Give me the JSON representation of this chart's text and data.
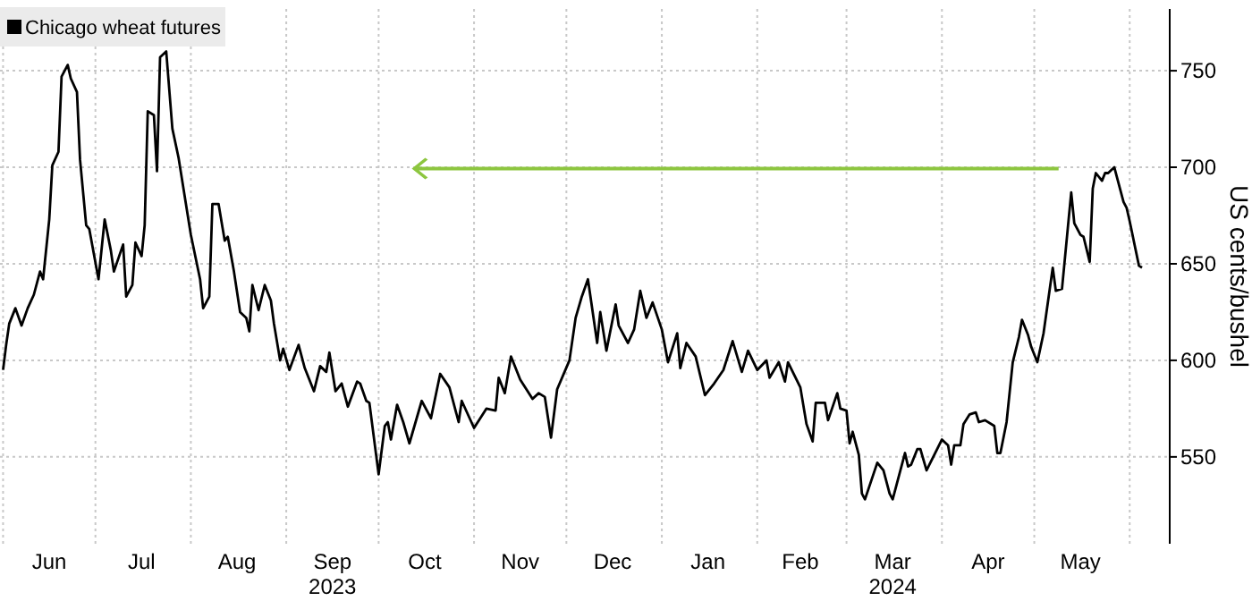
{
  "chart_data": {
    "type": "line",
    "legend": "top left",
    "grid": true,
    "marker": "none",
    "line_style": "solid",
    "ylabel": "US cents/bushel",
    "xlim": [
      "2023-05-31",
      "2024-06-14"
    ],
    "ylim": [
      505,
      782
    ],
    "yticks": [
      550,
      600,
      650,
      700,
      750
    ],
    "xticks": [
      {
        "value": "2023-06-01",
        "label": null
      },
      {
        "value": "2023-06-16",
        "label": "Jun"
      },
      {
        "value": "2023-07-01",
        "label": null
      },
      {
        "value": "2023-07-16",
        "label": "Jul"
      },
      {
        "value": "2023-08-01",
        "label": null
      },
      {
        "value": "2023-08-16",
        "label": "Aug"
      },
      {
        "value": "2023-09-01",
        "label": null
      },
      {
        "value": "2023-09-16",
        "label": "Sep\n2023"
      },
      {
        "value": "2023-10-01",
        "label": null
      },
      {
        "value": "2023-10-16",
        "label": "Oct"
      },
      {
        "value": "2023-11-01",
        "label": null
      },
      {
        "value": "2023-11-16",
        "label": "Nov"
      },
      {
        "value": "2023-12-01",
        "label": null
      },
      {
        "value": "2023-12-16",
        "label": "Dec"
      },
      {
        "value": "2024-01-01",
        "label": null
      },
      {
        "value": "2024-01-16",
        "label": "Jan"
      },
      {
        "value": "2024-02-01",
        "label": null
      },
      {
        "value": "2024-02-15",
        "label": "Feb"
      },
      {
        "value": "2024-03-01",
        "label": null
      },
      {
        "value": "2024-03-16",
        "label": "Mar\n2024"
      },
      {
        "value": "2024-04-01",
        "label": null
      },
      {
        "value": "2024-04-16",
        "label": "Apr"
      },
      {
        "value": "2024-05-01",
        "label": null
      },
      {
        "value": "2024-05-16",
        "label": "May"
      },
      {
        "value": "2024-06-01",
        "label": null
      }
    ],
    "series": [
      {
        "name": "Chicago wheat futures",
        "color": "#000000",
        "x": [
          "2023-06-01",
          "2023-06-02",
          "2023-06-03",
          "2023-06-05",
          "2023-06-07",
          "2023-06-09",
          "2023-06-11",
          "2023-06-13",
          "2023-06-14",
          "2023-06-16",
          "2023-06-17",
          "2023-06-19",
          "2023-06-20",
          "2023-06-22",
          "2023-06-23",
          "2023-06-25",
          "2023-06-26",
          "2023-06-28",
          "2023-06-29",
          "2023-07-02",
          "2023-07-04",
          "2023-07-06",
          "2023-07-07",
          "2023-07-10",
          "2023-07-11",
          "2023-07-13",
          "2023-07-14",
          "2023-07-16",
          "2023-07-17",
          "2023-07-18",
          "2023-07-20",
          "2023-07-21",
          "2023-07-22",
          "2023-07-24",
          "2023-07-26",
          "2023-07-28",
          "2023-08-01",
          "2023-08-04",
          "2023-08-05",
          "2023-08-07",
          "2023-08-08",
          "2023-08-10",
          "2023-08-12",
          "2023-08-13",
          "2023-08-15",
          "2023-08-17",
          "2023-08-19",
          "2023-08-20",
          "2023-08-21",
          "2023-08-23",
          "2023-08-25",
          "2023-08-27",
          "2023-08-28",
          "2023-08-30",
          "2023-08-31",
          "2023-09-02",
          "2023-09-05",
          "2023-09-07",
          "2023-09-10",
          "2023-09-12",
          "2023-09-14",
          "2023-09-15",
          "2023-09-17",
          "2023-09-19",
          "2023-09-21",
          "2023-09-24",
          "2023-09-25",
          "2023-09-27",
          "2023-09-28",
          "2023-10-01",
          "2023-10-03",
          "2023-10-04",
          "2023-10-05",
          "2023-10-07",
          "2023-10-09",
          "2023-10-11",
          "2023-10-15",
          "2023-10-18",
          "2023-10-21",
          "2023-10-24",
          "2023-10-27",
          "2023-10-28",
          "2023-11-01",
          "2023-11-05",
          "2023-11-08",
          "2023-11-09",
          "2023-11-11",
          "2023-11-13",
          "2023-11-16",
          "2023-11-20",
          "2023-11-22",
          "2023-11-24",
          "2023-11-26",
          "2023-11-28",
          "2023-12-02",
          "2023-12-04",
          "2023-12-06",
          "2023-12-08",
          "2023-12-11",
          "2023-12-12",
          "2023-12-14",
          "2023-12-17",
          "2023-12-18",
          "2023-12-21",
          "2023-12-23",
          "2023-12-25",
          "2023-12-27",
          "2023-12-29",
          "2024-01-01",
          "2024-01-03",
          "2024-01-06",
          "2024-01-07",
          "2024-01-09",
          "2024-01-12",
          "2024-01-15",
          "2024-01-18",
          "2024-01-21",
          "2024-01-24",
          "2024-01-27",
          "2024-01-29",
          "2024-02-01",
          "2024-02-04",
          "2024-02-05",
          "2024-02-08",
          "2024-02-10",
          "2024-02-11",
          "2024-02-15",
          "2024-02-17",
          "2024-02-19",
          "2024-02-20",
          "2024-02-23",
          "2024-02-24",
          "2024-02-27",
          "2024-02-28",
          "2024-03-01",
          "2024-03-02",
          "2024-03-03",
          "2024-03-05",
          "2024-03-06",
          "2024-03-07",
          "2024-03-11",
          "2024-03-13",
          "2024-03-15",
          "2024-03-16",
          "2024-03-20",
          "2024-03-21",
          "2024-03-22",
          "2024-03-24",
          "2024-03-25",
          "2024-03-27",
          "2024-04-01",
          "2024-04-03",
          "2024-04-04",
          "2024-04-05",
          "2024-04-07",
          "2024-04-08",
          "2024-04-10",
          "2024-04-12",
          "2024-04-13",
          "2024-04-15",
          "2024-04-18",
          "2024-04-19",
          "2024-04-20",
          "2024-04-22",
          "2024-04-24",
          "2024-04-26",
          "2024-04-27",
          "2024-04-29",
          "2024-04-30",
          "2024-05-02",
          "2024-05-04",
          "2024-05-07",
          "2024-05-08",
          "2024-05-10",
          "2024-05-13",
          "2024-05-14",
          "2024-05-16",
          "2024-05-17",
          "2024-05-19",
          "2024-05-20",
          "2024-05-21",
          "2024-05-23",
          "2024-05-24",
          "2024-05-25",
          "2024-05-27",
          "2024-05-30",
          "2024-05-31",
          "2024-06-01",
          "2024-06-04",
          "2024-06-05"
        ],
        "values": [
          595,
          608,
          619,
          627,
          618,
          627,
          634,
          646,
          642,
          673,
          701,
          708,
          747,
          753,
          746,
          739,
          704,
          670,
          668,
          642,
          673,
          657,
          646,
          660,
          633,
          639,
          661,
          654,
          670,
          729,
          727,
          698,
          757,
          760,
          720,
          705,
          665,
          642,
          627,
          633,
          681,
          681,
          662,
          664,
          646,
          625,
          622,
          615,
          639,
          626,
          639,
          631,
          619,
          600,
          606,
          595,
          608,
          596,
          584,
          597,
          594,
          604,
          584,
          588,
          576,
          589,
          588,
          579,
          578,
          541,
          566,
          568,
          559,
          577,
          568,
          557,
          579,
          570,
          593,
          586,
          568,
          579,
          565,
          575,
          574,
          591,
          583,
          602,
          590,
          580,
          583,
          581,
          560,
          585,
          600,
          622,
          633,
          642,
          609,
          625,
          605,
          629,
          618,
          609,
          616,
          636,
          622,
          630,
          616,
          599,
          614,
          596,
          609,
          602,
          582,
          588,
          595,
          610,
          594,
          605,
          595,
          600,
          591,
          599,
          589,
          599,
          586,
          567,
          558,
          578,
          578,
          569,
          583,
          575,
          574,
          557,
          563,
          551,
          531,
          528,
          547,
          543,
          531,
          528,
          552,
          545,
          546,
          554,
          554,
          543,
          559,
          556,
          546,
          556,
          556,
          567,
          572,
          573,
          568,
          569,
          566,
          552,
          552,
          568,
          599,
          612,
          621,
          613,
          607,
          599,
          614,
          648,
          636,
          637,
          687,
          671,
          665,
          664,
          651,
          689,
          697,
          693,
          697,
          697,
          700,
          682,
          679,
          672,
          649,
          648
        ]
      }
    ]
  }
}
